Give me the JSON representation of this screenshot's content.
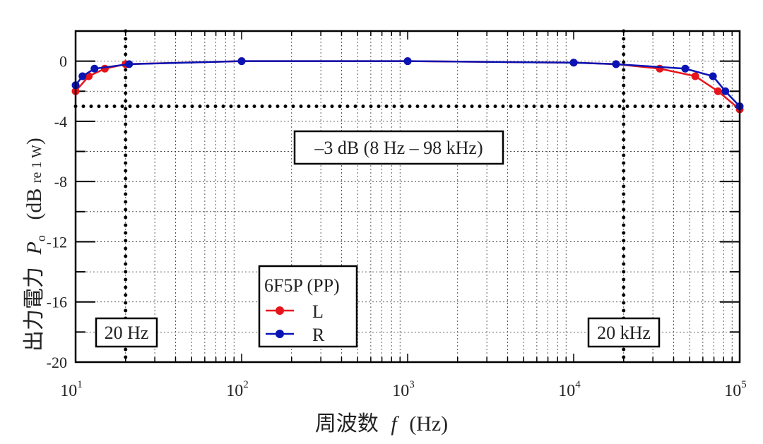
{
  "chart_data": {
    "type": "line",
    "title": "",
    "xlabel": "周波数 f (Hz)",
    "xlabel_parts": {
      "jp": "周波数",
      "var": "f",
      "unit": "(Hz)"
    },
    "ylabel": "出力電力 Po (dB re 1 W)",
    "ylabel_parts": {
      "jp": "出力電力",
      "var": "P",
      "sub": "o",
      "unit_open": "(dB",
      "unit_small": "re 1 W",
      "unit_close": ")"
    },
    "xscale": "log",
    "xlim": [
      10,
      100000
    ],
    "ylim": [
      -20,
      2
    ],
    "x_ticks": [
      {
        "exp": "1",
        "value": 10
      },
      {
        "exp": "2",
        "value": 100
      },
      {
        "exp": "3",
        "value": 1000
      },
      {
        "exp": "4",
        "value": 10000
      },
      {
        "exp": "5",
        "value": 100000
      }
    ],
    "y_ticks": [
      0,
      -4,
      -8,
      -12,
      -16,
      -20
    ],
    "grid": true,
    "legend": {
      "title": "6F5P (PP)",
      "position": "lower-center",
      "entries": [
        "L",
        "R"
      ]
    },
    "series": [
      {
        "name": "L",
        "color": "#e8141c",
        "x": [
          10,
          12,
          15,
          20,
          100,
          1000,
          10000,
          18000,
          33000,
          54000,
          74000,
          100000
        ],
        "y": [
          -2.0,
          -1.0,
          -0.5,
          -0.2,
          0.0,
          0.0,
          -0.1,
          -0.2,
          -0.5,
          -1.0,
          -2.0,
          -3.2
        ]
      },
      {
        "name": "R",
        "color": "#0a14b4",
        "x": [
          10,
          11,
          13,
          21,
          100,
          1000,
          10000,
          18000,
          47000,
          69000,
          82000,
          100000
        ],
        "y": [
          -1.6,
          -1.0,
          -0.5,
          -0.2,
          0.0,
          0.0,
          -0.1,
          -0.2,
          -0.5,
          -1.0,
          -2.0,
          -3.0
        ]
      }
    ],
    "reference_lines": [
      {
        "type": "horizontal",
        "y": -3,
        "style": "dotted"
      },
      {
        "type": "vertical",
        "x": 20,
        "style": "dotted"
      },
      {
        "type": "vertical",
        "x": 20000,
        "style": "dotted"
      }
    ],
    "annotations": [
      {
        "text": "–3 dB (8 Hz – 98 kHz)",
        "x": 2000,
        "y": -5.7
      },
      {
        "text": "20 Hz",
        "x": 20,
        "y": -18
      },
      {
        "text": "20 kHz",
        "x": 20000,
        "y": -18
      }
    ]
  }
}
